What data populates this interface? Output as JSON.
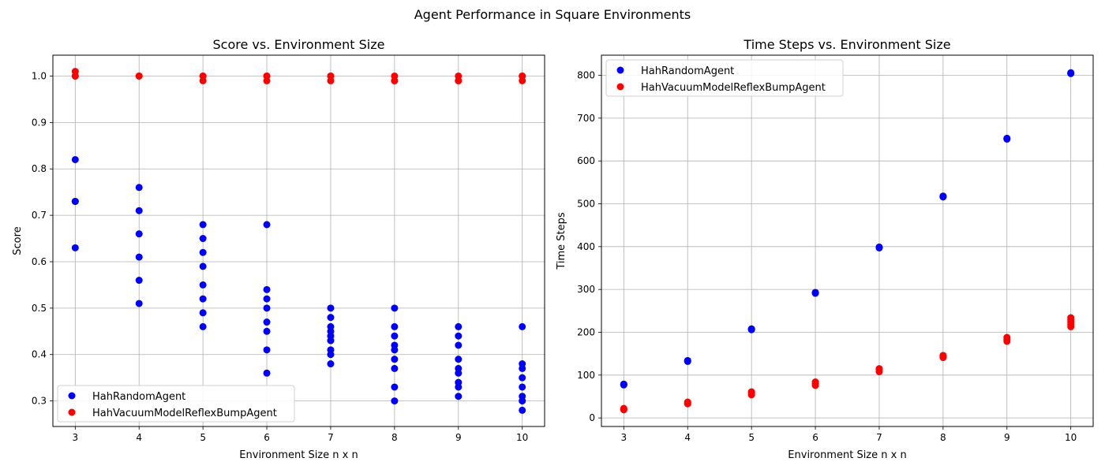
{
  "figure": {
    "suptitle": "Agent Performance in Square Environments"
  },
  "colors": {
    "random_agent": "#0000ff",
    "reflex_agent": "#ff0000",
    "grid": "#b0b0b0",
    "axis": "#000000"
  },
  "chart_data": [
    {
      "type": "scatter",
      "title": "Score vs. Environment Size",
      "xlabel": "Environment Size n x n",
      "ylabel": "Score",
      "xlim": [
        2.65,
        10.35
      ],
      "ylim": [
        0.245,
        1.045
      ],
      "xticks": [
        3,
        4,
        5,
        6,
        7,
        8,
        9,
        10
      ],
      "yticks": [
        0.3,
        0.4,
        0.5,
        0.6,
        0.7,
        0.8,
        0.9,
        1.0
      ],
      "ytick_labels": [
        "0.3",
        "0.4",
        "0.5",
        "0.6",
        "0.7",
        "0.8",
        "0.9",
        "1.0"
      ],
      "grid": true,
      "legend_position": "lower-left",
      "series": [
        {
          "name": "HahRandomAgent",
          "color": "#0000ff",
          "points": [
            [
              3,
              0.82
            ],
            [
              3,
              0.73
            ],
            [
              3,
              0.73
            ],
            [
              3,
              0.63
            ],
            [
              4,
              0.76
            ],
            [
              4,
              0.71
            ],
            [
              4,
              0.66
            ],
            [
              4,
              0.61
            ],
            [
              4,
              0.56
            ],
            [
              4,
              0.51
            ],
            [
              5,
              0.68
            ],
            [
              5,
              0.65
            ],
            [
              5,
              0.62
            ],
            [
              5,
              0.59
            ],
            [
              5,
              0.55
            ],
            [
              5,
              0.52
            ],
            [
              5,
              0.49
            ],
            [
              5,
              0.46
            ],
            [
              6,
              0.68
            ],
            [
              6,
              0.54
            ],
            [
              6,
              0.52
            ],
            [
              6,
              0.5
            ],
            [
              6,
              0.47
            ],
            [
              6,
              0.45
            ],
            [
              6,
              0.41
            ],
            [
              6,
              0.36
            ],
            [
              7,
              0.5
            ],
            [
              7,
              0.48
            ],
            [
              7,
              0.46
            ],
            [
              7,
              0.45
            ],
            [
              7,
              0.44
            ],
            [
              7,
              0.43
            ],
            [
              7,
              0.41
            ],
            [
              7,
              0.4
            ],
            [
              7,
              0.38
            ],
            [
              8,
              0.5
            ],
            [
              8,
              0.46
            ],
            [
              8,
              0.44
            ],
            [
              8,
              0.42
            ],
            [
              8,
              0.41
            ],
            [
              8,
              0.39
            ],
            [
              8,
              0.37
            ],
            [
              8,
              0.33
            ],
            [
              8,
              0.3
            ],
            [
              9,
              0.46
            ],
            [
              9,
              0.44
            ],
            [
              9,
              0.42
            ],
            [
              9,
              0.39
            ],
            [
              9,
              0.37
            ],
            [
              9,
              0.36
            ],
            [
              9,
              0.34
            ],
            [
              9,
              0.33
            ],
            [
              9,
              0.31
            ],
            [
              10,
              0.46
            ],
            [
              10,
              0.38
            ],
            [
              10,
              0.37
            ],
            [
              10,
              0.35
            ],
            [
              10,
              0.33
            ],
            [
              10,
              0.31
            ],
            [
              10,
              0.3
            ],
            [
              10,
              0.28
            ]
          ]
        },
        {
          "name": "HahVacuumModelReflexBumpAgent",
          "color": "#ff0000",
          "points": [
            [
              3,
              1.01
            ],
            [
              3,
              1.0
            ],
            [
              3,
              1.0
            ],
            [
              4,
              1.0
            ],
            [
              4,
              1.0
            ],
            [
              5,
              1.0
            ],
            [
              5,
              1.0
            ],
            [
              5,
              0.99
            ],
            [
              6,
              1.0
            ],
            [
              6,
              1.0
            ],
            [
              6,
              0.99
            ],
            [
              7,
              1.0
            ],
            [
              7,
              1.0
            ],
            [
              7,
              0.99
            ],
            [
              8,
              1.0
            ],
            [
              8,
              0.99
            ],
            [
              8,
              0.99
            ],
            [
              9,
              1.0
            ],
            [
              9,
              0.99
            ],
            [
              9,
              0.99
            ],
            [
              10,
              1.0
            ],
            [
              10,
              1.0
            ],
            [
              10,
              0.99
            ]
          ]
        }
      ]
    },
    {
      "type": "scatter",
      "title": "Time Steps vs. Environment Size",
      "xlabel": "Environment Size n x n",
      "ylabel": "Time Steps",
      "xlim": [
        2.65,
        10.35
      ],
      "ylim": [
        -20,
        847
      ],
      "xticks": [
        3,
        4,
        5,
        6,
        7,
        8,
        9,
        10
      ],
      "yticks": [
        0,
        100,
        200,
        300,
        400,
        500,
        600,
        700,
        800
      ],
      "ytick_labels": [
        "0",
        "100",
        "200",
        "300",
        "400",
        "500",
        "600",
        "700",
        "800"
      ],
      "grid": true,
      "legend_position": "top-left",
      "series": [
        {
          "name": "HahRandomAgent",
          "color": "#0000ff",
          "points": [
            [
              3,
              78
            ],
            [
              3,
              79
            ],
            [
              3,
              77
            ],
            [
              4,
              133
            ],
            [
              4,
              134
            ],
            [
              4,
              132
            ],
            [
              5,
              207
            ],
            [
              5,
              206
            ],
            [
              5,
              208
            ],
            [
              6,
              292
            ],
            [
              6,
              293
            ],
            [
              6,
              291
            ],
            [
              7,
              398
            ],
            [
              7,
              397
            ],
            [
              7,
              399
            ],
            [
              8,
              517
            ],
            [
              8,
              518
            ],
            [
              8,
              516
            ],
            [
              9,
              652
            ],
            [
              9,
              653
            ],
            [
              9,
              651
            ],
            [
              10,
              805
            ],
            [
              10,
              806
            ],
            [
              10,
              804
            ]
          ]
        },
        {
          "name": "HahVacuumModelReflexBumpAgent",
          "color": "#ff0000",
          "points": [
            [
              3,
              19
            ],
            [
              3,
              22
            ],
            [
              3,
              20
            ],
            [
              4,
              33
            ],
            [
              4,
              37
            ],
            [
              4,
              35
            ],
            [
              5,
              54
            ],
            [
              5,
              58
            ],
            [
              5,
              61
            ],
            [
              6,
              76
            ],
            [
              6,
              80
            ],
            [
              6,
              84
            ],
            [
              7,
              108
            ],
            [
              7,
              112
            ],
            [
              7,
              115
            ],
            [
              8,
              141
            ],
            [
              8,
              144
            ],
            [
              8,
              146
            ],
            [
              9,
              179
            ],
            [
              9,
              183
            ],
            [
              9,
              188
            ],
            [
              10,
              213
            ],
            [
              10,
              218
            ],
            [
              10,
              224
            ],
            [
              10,
              229
            ],
            [
              10,
              234
            ]
          ]
        }
      ]
    }
  ]
}
